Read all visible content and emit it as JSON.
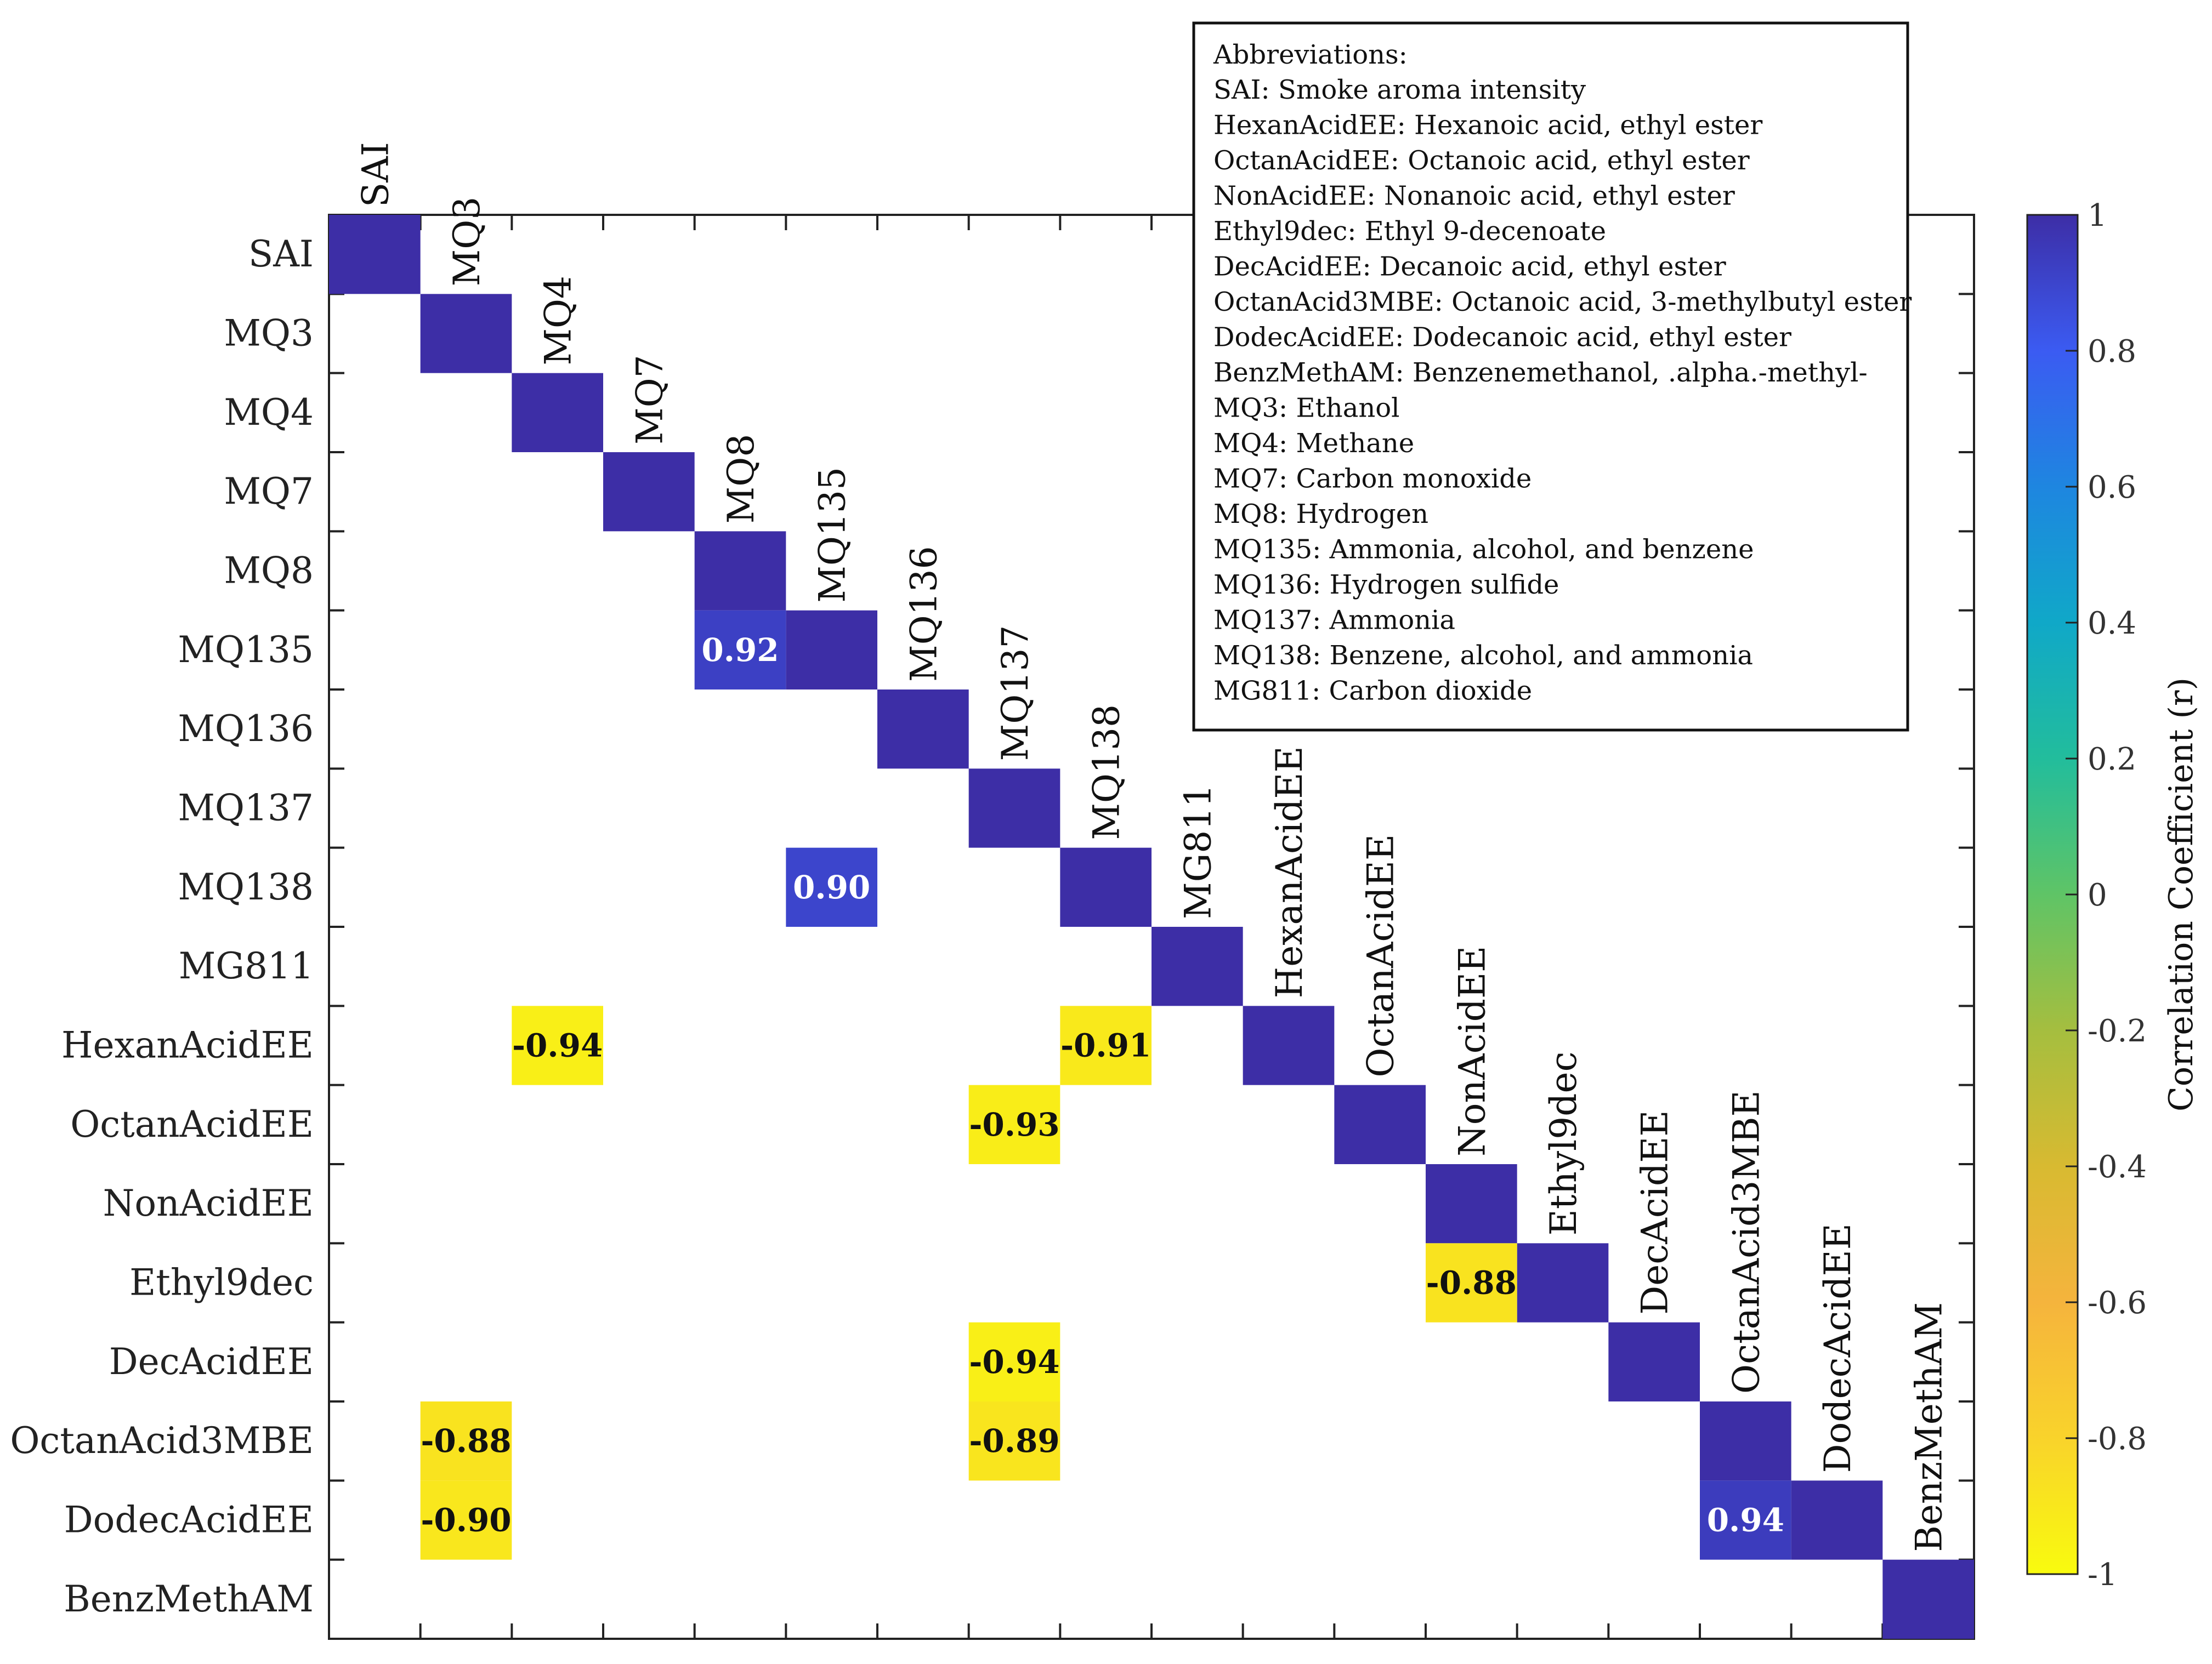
{
  "chart_data": {
    "type": "heatmap",
    "title": "",
    "labels": [
      "SAI",
      "MQ3",
      "MQ4",
      "MQ7",
      "MQ8",
      "MQ135",
      "MQ136",
      "MQ137",
      "MQ138",
      "MG811",
      "HexanAcidEE",
      "OctanAcidEE",
      "NonAcidEE",
      "Ethyl9dec",
      "DecAcidEE",
      "OctanAcid3MBE",
      "DodecAcidEE",
      "BenzMethAM"
    ],
    "diagonal_value": 1,
    "cells": [
      {
        "row": "MQ135",
        "col": "MQ8",
        "value": 0.92,
        "label": "0.92"
      },
      {
        "row": "MQ138",
        "col": "MQ135",
        "value": 0.9,
        "label": "0.90"
      },
      {
        "row": "HexanAcidEE",
        "col": "MQ4",
        "value": -0.94,
        "label": "-0.94"
      },
      {
        "row": "HexanAcidEE",
        "col": "MQ138",
        "value": -0.91,
        "label": "-0.91"
      },
      {
        "row": "OctanAcidEE",
        "col": "MQ137",
        "value": -0.93,
        "label": "-0.93"
      },
      {
        "row": "Ethyl9dec",
        "col": "NonAcidEE",
        "value": -0.88,
        "label": "-0.88"
      },
      {
        "row": "DecAcidEE",
        "col": "MQ137",
        "value": -0.94,
        "label": "-0.94"
      },
      {
        "row": "OctanAcid3MBE",
        "col": "MQ3",
        "value": -0.88,
        "label": "-0.88"
      },
      {
        "row": "OctanAcid3MBE",
        "col": "MQ137",
        "value": -0.89,
        "label": "-0.89"
      },
      {
        "row": "DodecAcidEE",
        "col": "MQ3",
        "value": -0.9,
        "label": "-0.90"
      },
      {
        "row": "DodecAcidEE",
        "col": "OctanAcid3MBE",
        "value": 0.94,
        "label": "0.94"
      }
    ],
    "colorbar": {
      "label": "Correlation Coefficient (r)",
      "range": [
        -1,
        1
      ],
      "ticks": [
        "1",
        "0.8",
        "0.6",
        "0.4",
        "0.2",
        "0",
        "-0.2",
        "-0.4",
        "-0.6",
        "-0.8",
        "-1"
      ]
    },
    "legend_placement": "top-right",
    "abbreviations_title": "Abbreviations:",
    "abbreviations": [
      "SAI: Smoke aroma intensity",
      "HexanAcidEE: Hexanoic acid, ethyl ester",
      "OctanAcidEE: Octanoic acid, ethyl ester",
      "NonAcidEE: Nonanoic acid, ethyl ester",
      "Ethyl9dec: Ethyl 9-decenoate",
      "DecAcidEE: Decanoic acid, ethyl ester",
      "OctanAcid3MBE: Octanoic acid, 3-methylbutyl ester",
      "DodecAcidEE: Dodecanoic acid, ethyl ester",
      "BenzMethAM: Benzenemethanol, .alpha.-methyl-",
      "MQ3: Ethanol",
      "MQ4: Methane",
      "MQ7: Carbon monoxide",
      "MQ8: Hydrogen",
      "MQ135: Ammonia, alcohol, and benzene",
      "MQ136: Hydrogen sulfide",
      "MQ137: Ammonia",
      "MQ138: Benzene, alcohol, and ammonia",
      "MG811: Carbon dioxide"
    ]
  }
}
